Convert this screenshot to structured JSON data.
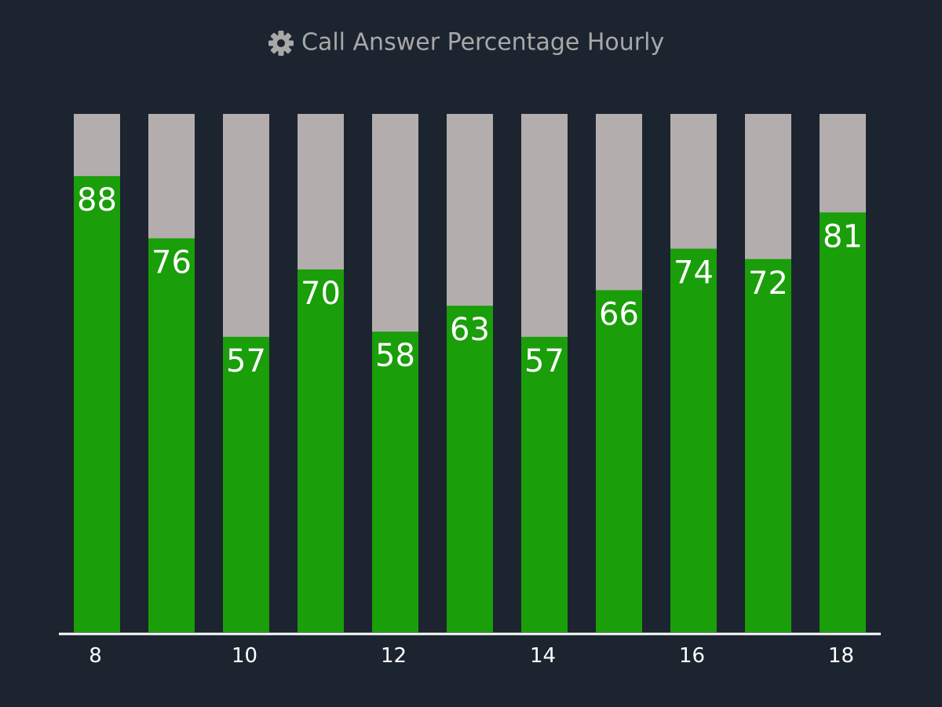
{
  "chart_data": {
    "type": "bar",
    "title": "Call Answer Percentage Hourly",
    "categories": [
      8,
      null,
      10,
      null,
      12,
      null,
      14,
      null,
      16,
      null,
      18
    ],
    "values": [
      88,
      76,
      57,
      70,
      58,
      63,
      57,
      66,
      74,
      72,
      81
    ],
    "color": "#1a9e0a",
    "track_color": "#b3adad",
    "ylim": [
      0,
      100
    ]
  }
}
